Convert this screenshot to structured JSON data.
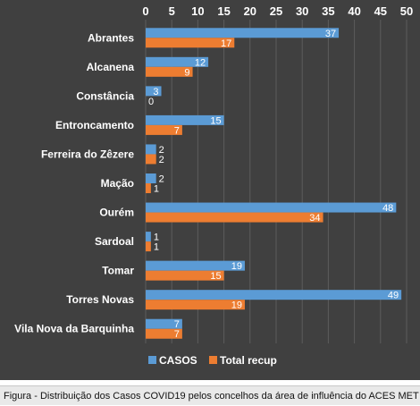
{
  "chart_data": {
    "type": "bar",
    "orientation": "horizontal",
    "categories": [
      "Abrantes",
      "Alcanena",
      "Constância",
      "Entroncamento",
      "Ferreira do Zêzere",
      "Mação",
      "Ourém",
      "Sardoal",
      "Tomar",
      "Torres Novas",
      "Vila Nova da Barquinha"
    ],
    "series": [
      {
        "name": "CASOS",
        "values": [
          37,
          12,
          3,
          15,
          2,
          2,
          48,
          1,
          19,
          49,
          7
        ],
        "color": "#5b9bd5"
      },
      {
        "name": "Total recup",
        "values": [
          17,
          9,
          0,
          7,
          2,
          1,
          34,
          1,
          15,
          19,
          7
        ],
        "color": "#ed7d31"
      }
    ],
    "xlim": [
      0,
      50
    ],
    "xticks": [
      0,
      5,
      10,
      15,
      20,
      25,
      30,
      35,
      40,
      45,
      50
    ],
    "x_axis_position": "top",
    "grid": true,
    "legend": "bottom",
    "background": "#404040"
  },
  "caption": "Figura -  Distribuição dos Casos COVID19 pelos concelhos da área de influência do ACES MET"
}
